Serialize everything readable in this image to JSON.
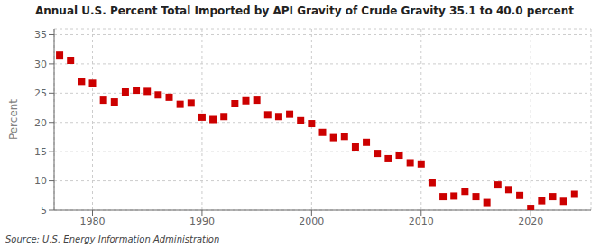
{
  "chart_data": {
    "type": "scatter",
    "title": "Annual U.S. Percent Total Imported by API Gravity of Crude Gravity 35.1 to 40.0 percent",
    "ylabel": "Percent",
    "source": "Source: U.S. Energy Information Administration",
    "color": "#cc0000",
    "marker": "square",
    "grid": true,
    "xlim": [
      1976.5,
      2025.5
    ],
    "xticks": [
      1980,
      1990,
      2000,
      2010,
      2020
    ],
    "ylim": [
      5,
      36
    ],
    "yticks": [
      5,
      10,
      15,
      20,
      25,
      30,
      35
    ],
    "x": [
      1977,
      1978,
      1979,
      1980,
      1981,
      1982,
      1983,
      1984,
      1985,
      1986,
      1987,
      1988,
      1989,
      1990,
      1991,
      1992,
      1993,
      1994,
      1995,
      1996,
      1997,
      1998,
      1999,
      2000,
      2001,
      2002,
      2003,
      2004,
      2005,
      2006,
      2007,
      2008,
      2009,
      2010,
      2011,
      2012,
      2013,
      2014,
      2015,
      2016,
      2017,
      2018,
      2019,
      2020,
      2021,
      2022,
      2023,
      2024
    ],
    "values": [
      31.5,
      30.6,
      27.0,
      26.7,
      23.8,
      23.5,
      25.2,
      25.5,
      25.3,
      24.7,
      24.3,
      23.1,
      23.3,
      20.9,
      20.5,
      21.0,
      23.2,
      23.7,
      23.8,
      21.3,
      21.0,
      21.4,
      20.3,
      19.8,
      18.3,
      17.4,
      17.6,
      15.8,
      16.6,
      14.7,
      13.8,
      14.4,
      13.1,
      12.9,
      9.7,
      7.3,
      7.4,
      8.2,
      7.3,
      6.3,
      9.3,
      8.5,
      7.5,
      5.3,
      6.6,
      7.3,
      6.5,
      7.7
    ]
  }
}
